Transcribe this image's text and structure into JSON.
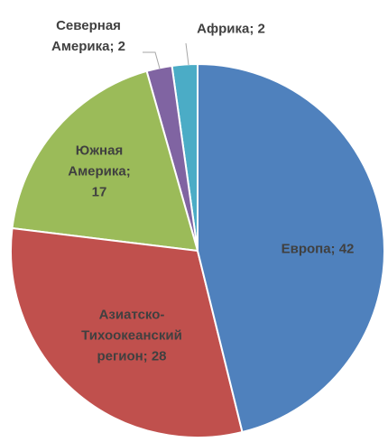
{
  "chart_data": {
    "type": "pie",
    "values": [
      42,
      28,
      17,
      2,
      2
    ],
    "value_labels": [
      "Европа; 42",
      "Азиатско-Тихоокеанский регион; 28",
      "Южная Америка; 17",
      "Северная Америка; 2",
      "Африка; 2"
    ],
    "colors": [
      "#4f81bd",
      "#c0504d",
      "#9bbb59",
      "#8064a2",
      "#4bacc6"
    ]
  }
}
